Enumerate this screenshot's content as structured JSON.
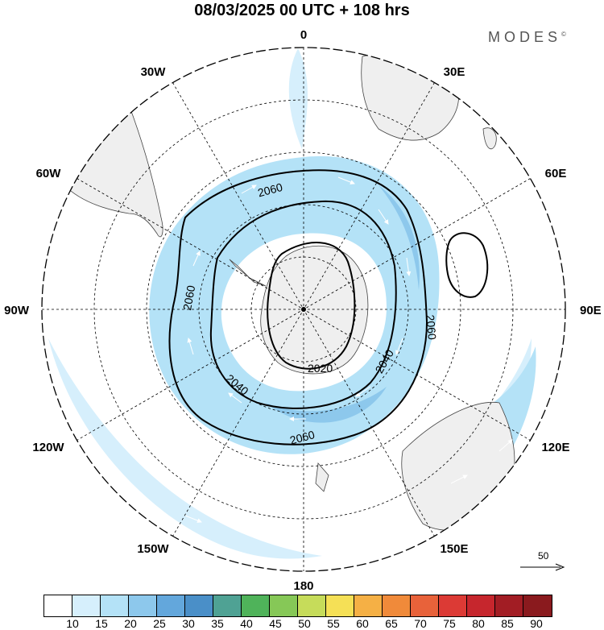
{
  "title": "08/03/2025  00 UTC  + 108 hrs",
  "brand": "MODES",
  "brand_mark": "©",
  "longitude_labels": {
    "top": "0",
    "e30": "30E",
    "e60": "60E",
    "e90": "90E",
    "e120": "120E",
    "e150": "150E",
    "bottom": "180",
    "w150": "150W",
    "w120": "120W",
    "w90": "90W",
    "w60": "60W",
    "w30": "30W"
  },
  "contour_labels": {
    "a": "2060",
    "b": "2060",
    "c": "2060",
    "d": "2060",
    "e": "2040",
    "f": "2040",
    "g": "2020"
  },
  "vector_reference": "50",
  "colorbar": {
    "colors": [
      "#ffffff",
      "#d6effc",
      "#b4e2f7",
      "#8dc8ec",
      "#63a7dc",
      "#4a8fc8",
      "#4fa294",
      "#4fb35a",
      "#86c857",
      "#c6dc5a",
      "#f5e056",
      "#f5b045",
      "#f08a3a",
      "#e8623a",
      "#dc3a35",
      "#c6262d",
      "#a21d24",
      "#8a1a1e"
    ],
    "ticks": [
      "10",
      "15",
      "20",
      "25",
      "30",
      "35",
      "40",
      "45",
      "50",
      "55",
      "60",
      "65",
      "70",
      "75",
      "80",
      "85",
      "90"
    ]
  }
}
